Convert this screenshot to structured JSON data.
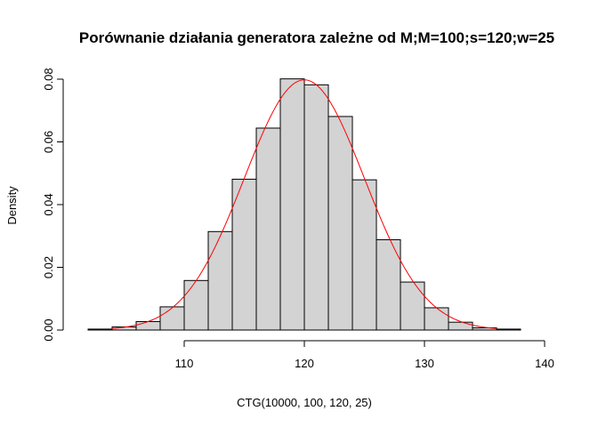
{
  "chart_data": {
    "type": "bar",
    "title": "Porównanie działania generatora zależne od M;M=100;s=120;w=25",
    "xlabel": "CTG(10000, 100, 120, 25)",
    "ylabel": "Density",
    "xlim": [
      102,
      140
    ],
    "ylim": [
      0,
      0.08
    ],
    "x_ticks": [
      110,
      120,
      130,
      140
    ],
    "x_tick_labels": [
      "110",
      "120",
      "130",
      "140"
    ],
    "y_ticks": [
      0,
      0.02,
      0.04,
      0.06,
      0.08
    ],
    "y_tick_labels": [
      "0.00",
      "0.02",
      "0.04",
      "0.06",
      "0.08"
    ],
    "bins": [
      {
        "start": 102,
        "end": 104,
        "density": 0.0003
      },
      {
        "start": 104,
        "end": 106,
        "density": 0.001
      },
      {
        "start": 106,
        "end": 108,
        "density": 0.0027
      },
      {
        "start": 108,
        "end": 110,
        "density": 0.0074
      },
      {
        "start": 110,
        "end": 112,
        "density": 0.0158
      },
      {
        "start": 112,
        "end": 114,
        "density": 0.0314
      },
      {
        "start": 114,
        "end": 116,
        "density": 0.0481
      },
      {
        "start": 116,
        "end": 118,
        "density": 0.0644
      },
      {
        "start": 118,
        "end": 120,
        "density": 0.0801
      },
      {
        "start": 120,
        "end": 122,
        "density": 0.0782
      },
      {
        "start": 122,
        "end": 124,
        "density": 0.0681
      },
      {
        "start": 124,
        "end": 126,
        "density": 0.0479
      },
      {
        "start": 126,
        "end": 128,
        "density": 0.0288
      },
      {
        "start": 128,
        "end": 130,
        "density": 0.0153
      },
      {
        "start": 130,
        "end": 132,
        "density": 0.0071
      },
      {
        "start": 132,
        "end": 134,
        "density": 0.0025
      },
      {
        "start": 134,
        "end": 136,
        "density": 0.0007
      },
      {
        "start": 136,
        "end": 138,
        "density": 0.0003
      }
    ],
    "curve": {
      "type": "normal-density",
      "mean": 120,
      "sd": 5,
      "x_range": [
        104,
        136
      ],
      "color": "#ff0000"
    },
    "bar_fill": "#d3d3d3",
    "bar_stroke": "#000000",
    "grid": false
  }
}
